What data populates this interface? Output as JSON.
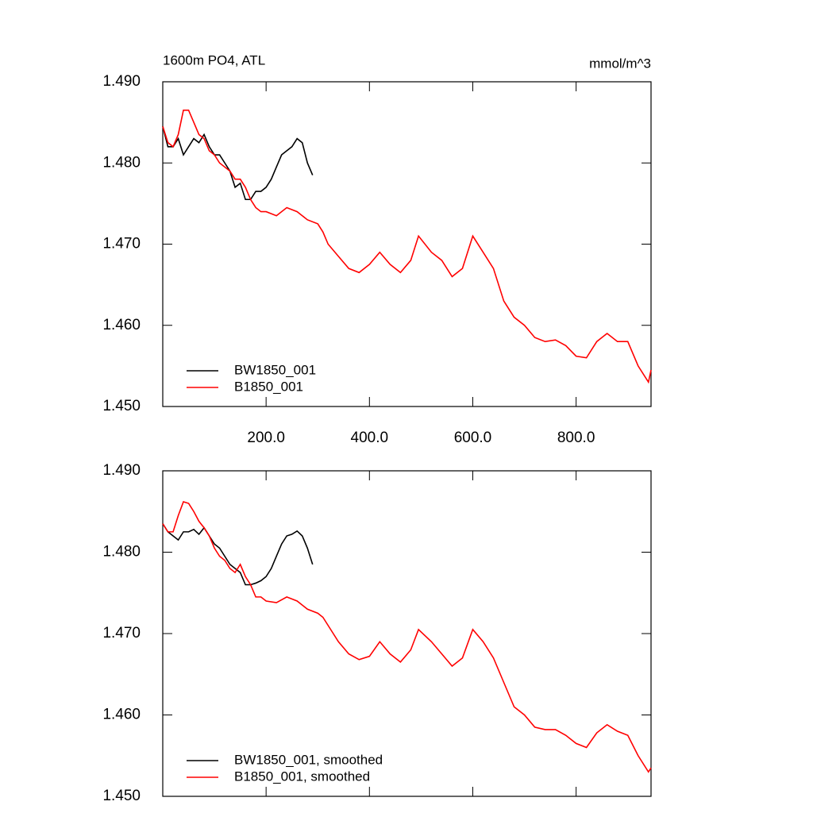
{
  "chart_data": [
    {
      "type": "line",
      "title": "1600m PO4, ATL",
      "units_label": "mmol/m^3",
      "xlim": [
        0,
        945
      ],
      "xticks": [
        {
          "value": 200,
          "label": "200.0"
        },
        {
          "value": 400,
          "label": "400.0"
        },
        {
          "value": 600,
          "label": "600.0"
        },
        {
          "value": 800,
          "label": "800.0"
        }
      ],
      "ylim": [
        1.45,
        1.49
      ],
      "yticks": [
        {
          "value": 1.45,
          "label": "1.450"
        },
        {
          "value": 1.46,
          "label": "1.460"
        },
        {
          "value": 1.47,
          "label": "1.470"
        },
        {
          "value": 1.48,
          "label": "1.480"
        },
        {
          "value": 1.49,
          "label": "1.490"
        }
      ],
      "legend": "lower-left",
      "series": [
        {
          "name": "BW1850_001",
          "color": "#000000",
          "x": [
            0,
            10,
            20,
            30,
            40,
            50,
            60,
            70,
            80,
            90,
            100,
            110,
            120,
            130,
            140,
            150,
            160,
            170,
            180,
            190,
            200,
            210,
            220,
            230,
            240,
            250,
            260,
            270,
            280,
            290
          ],
          "values": [
            1.4845,
            1.482,
            1.482,
            1.483,
            1.481,
            1.482,
            1.483,
            1.4825,
            1.4835,
            1.482,
            1.481,
            1.481,
            1.48,
            1.479,
            1.477,
            1.4775,
            1.4755,
            1.4755,
            1.4765,
            1.4765,
            1.477,
            1.478,
            1.4795,
            1.481,
            1.4815,
            1.482,
            1.483,
            1.4825,
            1.48,
            1.4785
          ]
        },
        {
          "name": "B1850_001",
          "color": "#ff0000",
          "x": [
            0,
            10,
            20,
            30,
            40,
            50,
            60,
            70,
            80,
            90,
            100,
            110,
            120,
            130,
            140,
            150,
            160,
            170,
            180,
            190,
            200,
            220,
            240,
            260,
            280,
            300,
            310,
            320,
            340,
            360,
            380,
            400,
            420,
            440,
            460,
            480,
            495,
            520,
            540,
            560,
            580,
            600,
            620,
            640,
            660,
            680,
            700,
            720,
            740,
            760,
            780,
            800,
            820,
            840,
            860,
            880,
            900,
            920,
            940,
            945
          ],
          "values": [
            1.4845,
            1.4825,
            1.482,
            1.4835,
            1.4865,
            1.4865,
            1.485,
            1.4835,
            1.483,
            1.4815,
            1.481,
            1.48,
            1.4795,
            1.479,
            1.478,
            1.478,
            1.477,
            1.4755,
            1.4745,
            1.474,
            1.474,
            1.4735,
            1.4745,
            1.474,
            1.473,
            1.4725,
            1.4715,
            1.47,
            1.4685,
            1.467,
            1.4665,
            1.4675,
            1.469,
            1.4675,
            1.4665,
            1.468,
            1.471,
            1.469,
            1.468,
            1.466,
            1.467,
            1.471,
            1.469,
            1.467,
            1.463,
            1.461,
            1.46,
            1.4585,
            1.458,
            1.4582,
            1.4575,
            1.4562,
            1.456,
            1.458,
            1.459,
            1.458,
            1.458,
            1.455,
            1.453,
            1.4545
          ]
        }
      ]
    },
    {
      "type": "line",
      "xlim": [
        0,
        945
      ],
      "xticks": [
        200,
        400,
        600,
        800
      ],
      "ylim": [
        1.45,
        1.49
      ],
      "yticks": [
        {
          "value": 1.45,
          "label": "1.450"
        },
        {
          "value": 1.46,
          "label": "1.460"
        },
        {
          "value": 1.47,
          "label": "1.470"
        },
        {
          "value": 1.48,
          "label": "1.480"
        },
        {
          "value": 1.49,
          "label": "1.490"
        }
      ],
      "legend": "lower-left",
      "series": [
        {
          "name": "BW1850_001, smoothed",
          "color": "#000000",
          "x": [
            0,
            10,
            20,
            30,
            40,
            50,
            60,
            70,
            80,
            90,
            100,
            110,
            120,
            130,
            140,
            150,
            160,
            170,
            180,
            190,
            200,
            210,
            220,
            230,
            240,
            250,
            260,
            270,
            280,
            290
          ],
          "values": [
            1.4835,
            1.4825,
            1.482,
            1.4815,
            1.4825,
            1.4825,
            1.4828,
            1.4822,
            1.483,
            1.482,
            1.481,
            1.4805,
            1.4795,
            1.4785,
            1.478,
            1.4775,
            1.476,
            1.476,
            1.4762,
            1.4765,
            1.477,
            1.478,
            1.4795,
            1.481,
            1.482,
            1.4822,
            1.4826,
            1.482,
            1.4805,
            1.4785
          ]
        },
        {
          "name": "B1850_001, smoothed",
          "color": "#ff0000",
          "x": [
            0,
            10,
            20,
            30,
            40,
            50,
            60,
            70,
            80,
            90,
            100,
            110,
            120,
            130,
            140,
            150,
            160,
            170,
            180,
            190,
            200,
            220,
            240,
            260,
            280,
            300,
            310,
            320,
            340,
            360,
            380,
            400,
            420,
            440,
            460,
            480,
            495,
            520,
            540,
            560,
            580,
            600,
            620,
            640,
            660,
            680,
            700,
            720,
            740,
            760,
            780,
            800,
            820,
            840,
            860,
            880,
            900,
            920,
            940,
            945
          ],
          "values": [
            1.4835,
            1.4825,
            1.4825,
            1.4845,
            1.4862,
            1.486,
            1.485,
            1.4838,
            1.483,
            1.482,
            1.4805,
            1.4795,
            1.479,
            1.478,
            1.4775,
            1.4785,
            1.477,
            1.476,
            1.4745,
            1.4745,
            1.474,
            1.4738,
            1.4745,
            1.474,
            1.473,
            1.4725,
            1.472,
            1.471,
            1.469,
            1.4675,
            1.4668,
            1.4672,
            1.469,
            1.4675,
            1.4665,
            1.468,
            1.4705,
            1.469,
            1.4675,
            1.466,
            1.467,
            1.4705,
            1.469,
            1.467,
            1.464,
            1.461,
            1.46,
            1.4585,
            1.4582,
            1.4582,
            1.4575,
            1.4565,
            1.456,
            1.4578,
            1.4588,
            1.458,
            1.4575,
            1.455,
            1.453,
            1.4535
          ]
        }
      ]
    }
  ]
}
